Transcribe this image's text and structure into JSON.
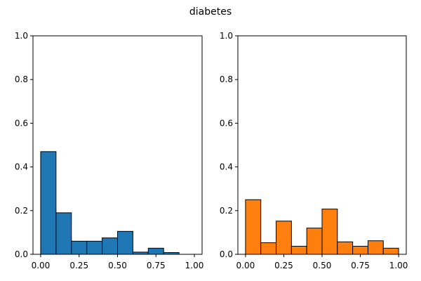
{
  "chart_data": {
    "title": "diabetes",
    "charts": [
      {
        "type": "bar",
        "color": "#1f77b4",
        "bin_edges": [
          0.0,
          0.1,
          0.2,
          0.3,
          0.4,
          0.5,
          0.6,
          0.7,
          0.8,
          0.9,
          1.0
        ],
        "values": [
          0.47,
          0.19,
          0.06,
          0.06,
          0.075,
          0.105,
          0.01,
          0.028,
          0.008,
          0.0
        ],
        "xlim": [
          -0.05,
          1.05
        ],
        "ylim": [
          0,
          1.0
        ],
        "xticks": [
          0.0,
          0.25,
          0.5,
          0.75,
          1.0
        ],
        "xtick_labels": [
          "0.00",
          "0.25",
          "0.50",
          "0.75",
          "1.00"
        ],
        "yticks": [
          0.0,
          0.2,
          0.4,
          0.6,
          0.8,
          1.0
        ],
        "ytick_labels": [
          "0.0",
          "0.2",
          "0.4",
          "0.6",
          "0.8",
          "1.0"
        ],
        "grid": false
      },
      {
        "type": "bar",
        "color": "#ff7f0e",
        "bin_edges": [
          0.0,
          0.1,
          0.2,
          0.3,
          0.4,
          0.5,
          0.6,
          0.7,
          0.8,
          0.9,
          1.0
        ],
        "values": [
          0.25,
          0.053,
          0.152,
          0.037,
          0.12,
          0.207,
          0.057,
          0.037,
          0.062,
          0.028
        ],
        "xlim": [
          -0.05,
          1.05
        ],
        "ylim": [
          0,
          1.0
        ],
        "xticks": [
          0.0,
          0.25,
          0.5,
          0.75,
          1.0
        ],
        "xtick_labels": [
          "0.00",
          "0.25",
          "0.50",
          "0.75",
          "1.00"
        ],
        "yticks": [
          0.0,
          0.2,
          0.4,
          0.6,
          0.8,
          1.0
        ],
        "ytick_labels": [
          "0.0",
          "0.2",
          "0.4",
          "0.6",
          "0.8",
          "1.0"
        ],
        "grid": false
      }
    ]
  }
}
